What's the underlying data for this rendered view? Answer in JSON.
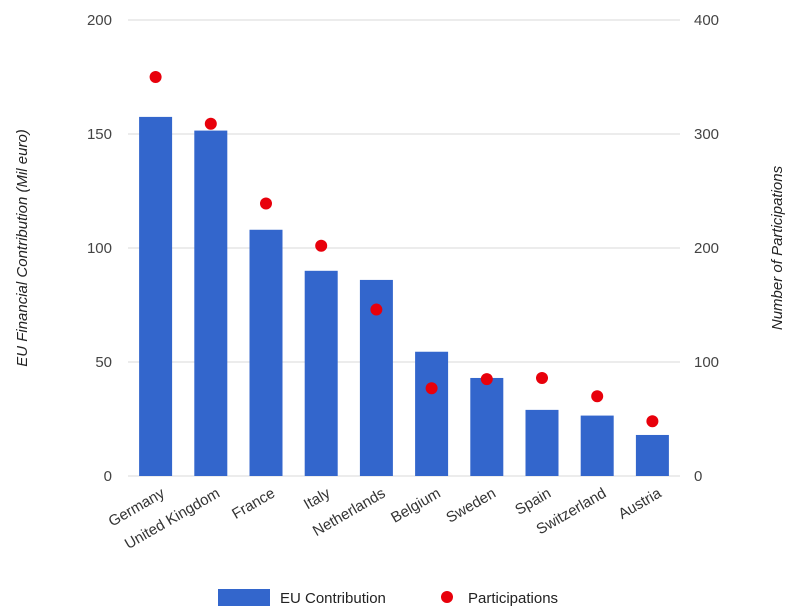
{
  "chart_data": {
    "type": "bar",
    "categories": [
      "Germany",
      "United Kingdom",
      "France",
      "Italy",
      "Netherlands",
      "Belgium",
      "Sweden",
      "Spain",
      "Switzerland",
      "Austria"
    ],
    "series": [
      {
        "name": "EU Contribution",
        "type": "bar",
        "axis": "left",
        "values": [
          157.5,
          151.5,
          108,
          90,
          86,
          54.5,
          43,
          29,
          26.5,
          18
        ],
        "color": "#3366cc"
      },
      {
        "name": "Participations",
        "type": "scatter",
        "axis": "right",
        "values": [
          350,
          309,
          239,
          202,
          146,
          77,
          85,
          86,
          70,
          48
        ],
        "color": "#e8000b"
      }
    ],
    "ylabel": "EU Financial Contribution (Mil euro)",
    "y2label": "Number of Participations",
    "ylim": [
      0,
      200
    ],
    "y2lim": [
      0,
      400
    ],
    "yticks": [
      "0",
      "50",
      "100",
      "150",
      "200"
    ],
    "y2ticks": [
      "0",
      "100",
      "200",
      "300",
      "400"
    ],
    "grid": true,
    "legend": "bottom"
  }
}
